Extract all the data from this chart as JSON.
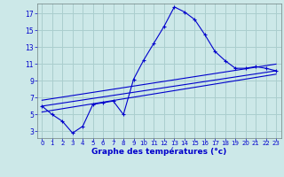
{
  "xlabel": "Graphe des températures (°c)",
  "bg_color": "#cce8e8",
  "line_color": "#0000cc",
  "grid_color": "#aacece",
  "xlim": [
    -0.5,
    23.5
  ],
  "ylim": [
    2.2,
    18.2
  ],
  "yticks": [
    3,
    5,
    7,
    9,
    11,
    13,
    15,
    17
  ],
  "xticks": [
    0,
    1,
    2,
    3,
    4,
    5,
    6,
    7,
    8,
    9,
    10,
    11,
    12,
    13,
    14,
    15,
    16,
    17,
    18,
    19,
    20,
    21,
    22,
    23
  ],
  "main_line": {
    "x": [
      0,
      1,
      2,
      3,
      4,
      5,
      6,
      7,
      8,
      9,
      10,
      11,
      12,
      13,
      14,
      15,
      16,
      17,
      18,
      19,
      20,
      21,
      22,
      23
    ],
    "y": [
      6.0,
      5.0,
      4.2,
      2.8,
      3.6,
      6.2,
      6.4,
      6.6,
      5.0,
      9.2,
      11.5,
      13.5,
      15.5,
      17.8,
      17.2,
      16.3,
      14.5,
      12.5,
      11.4,
      10.5,
      10.5,
      10.7,
      10.5,
      10.2
    ]
  },
  "avg_line1": {
    "x": [
      0,
      23
    ],
    "y": [
      5.3,
      9.8
    ]
  },
  "avg_line2": {
    "x": [
      0,
      23
    ],
    "y": [
      6.0,
      10.2
    ]
  },
  "avg_line3": {
    "x": [
      0,
      23
    ],
    "y": [
      6.7,
      11.0
    ]
  }
}
